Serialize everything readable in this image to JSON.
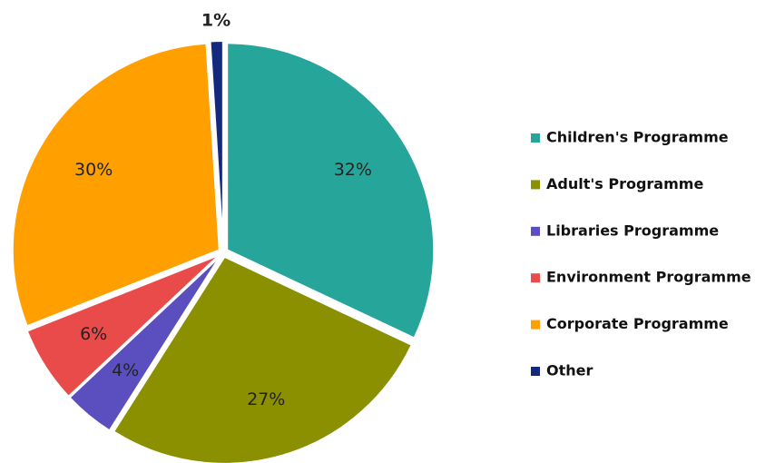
{
  "chart_data": {
    "type": "pie",
    "categories": [
      "Children's Programme",
      "Adult's Programme",
      "Libraries Programme",
      "Environment Programme",
      "Corporate Programme",
      "Other"
    ],
    "values": [
      32,
      27,
      4,
      6,
      30,
      1
    ],
    "value_labels": [
      "32%",
      "27%",
      "4%",
      "6%",
      "30%",
      "1%"
    ],
    "colors": [
      "#26a59a",
      "#8a9000",
      "#5b4fc0",
      "#e94b4b",
      "#ffa000",
      "#14287e"
    ],
    "legend": "right"
  }
}
